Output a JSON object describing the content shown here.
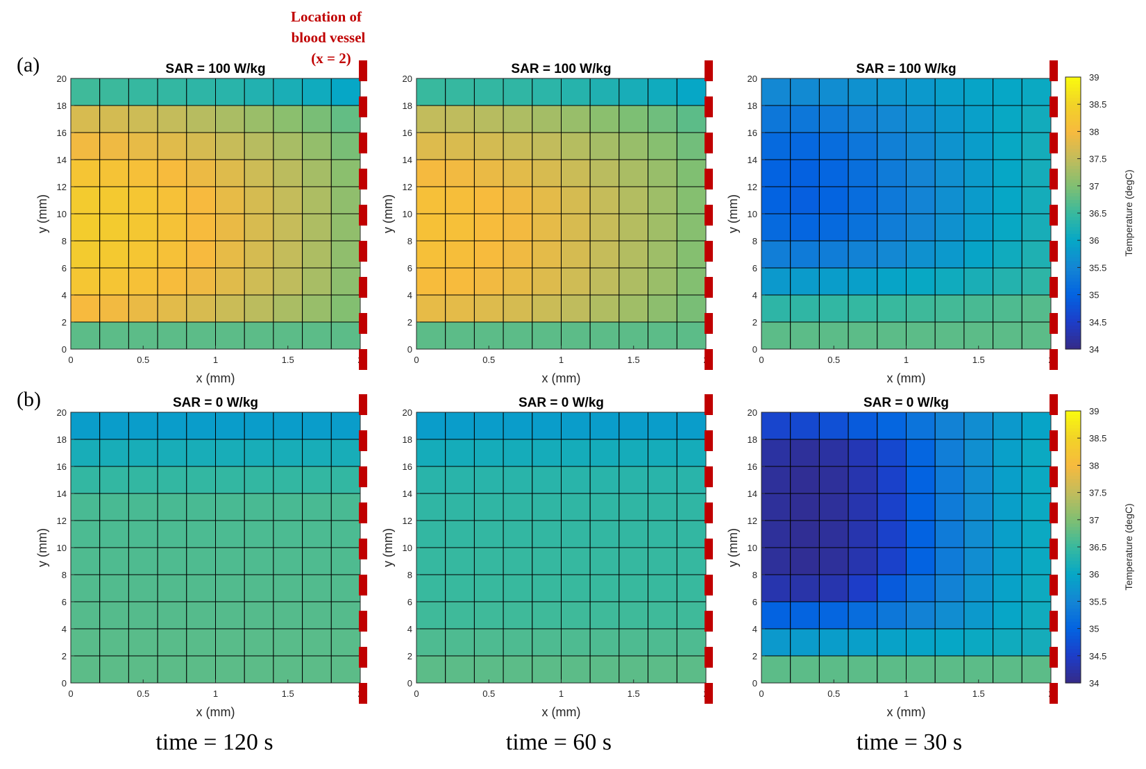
{
  "figure": {
    "row_labels": [
      "(a)",
      "(b)"
    ],
    "time_labels": [
      "time = 120 s",
      "time = 60 s",
      "time = 30 s"
    ],
    "annotation": {
      "lines": [
        "Location of",
        "blood vessel",
        "(x = 2)"
      ],
      "color": "#c00000"
    },
    "vessel_color": "#c00000"
  },
  "chart_data": {
    "type": "heatmap",
    "xlabel": "x (mm)",
    "ylabel": "y (mm)",
    "x_edges": [
      0,
      0.2,
      0.4,
      0.6,
      0.8,
      1.0,
      1.2,
      1.4,
      1.6,
      1.8,
      2.0
    ],
    "y_edges": [
      0,
      2,
      4,
      6,
      8,
      10,
      12,
      14,
      16,
      18,
      20
    ],
    "xlim": [
      0,
      2
    ],
    "ylim": [
      0,
      20
    ],
    "xticks": [
      0,
      0.5,
      1,
      1.5,
      2
    ],
    "xtick_labels": [
      "0",
      "0.5",
      "1",
      "1.5",
      "2"
    ],
    "yticks": [
      0,
      2,
      4,
      6,
      8,
      10,
      12,
      14,
      16,
      18,
      20
    ],
    "ytick_labels": [
      "0",
      "2",
      "4",
      "6",
      "8",
      "10",
      "12",
      "14",
      "16",
      "18",
      "20"
    ],
    "colorbar": {
      "label": "Temperature (degC)",
      "clim": [
        34,
        39
      ],
      "ticks": [
        34,
        34.5,
        35,
        35.5,
        36,
        36.5,
        37,
        37.5,
        38,
        38.5,
        39
      ],
      "tick_labels": [
        "34",
        "34.5",
        "35",
        "35.5",
        "36",
        "36.5",
        "37",
        "37.5",
        "38",
        "38.5",
        "39"
      ]
    },
    "panels": [
      {
        "id": "a-120",
        "title": "SAR = 100 W/kg",
        "row": 0,
        "col": 0,
        "colorbar": false,
        "values": [
          [
            36.75,
            36.75,
            36.75,
            36.75,
            36.75,
            36.75,
            36.75,
            36.75,
            36.75,
            36.75
          ],
          [
            38.0,
            37.95,
            37.88,
            37.8,
            37.7,
            37.58,
            37.45,
            37.32,
            37.18,
            37.02
          ],
          [
            38.25,
            38.22,
            38.15,
            38.05,
            37.92,
            37.78,
            37.62,
            37.48,
            37.3,
            37.1
          ],
          [
            38.35,
            38.32,
            38.25,
            38.14,
            38.0,
            37.85,
            37.68,
            37.52,
            37.34,
            37.12
          ],
          [
            38.38,
            38.35,
            38.28,
            38.17,
            38.03,
            37.88,
            37.7,
            37.54,
            37.35,
            37.13
          ],
          [
            38.35,
            38.32,
            38.25,
            38.14,
            38.0,
            37.85,
            37.68,
            37.52,
            37.34,
            37.12
          ],
          [
            38.22,
            38.18,
            38.12,
            38.02,
            37.9,
            37.76,
            37.6,
            37.45,
            37.28,
            37.08
          ],
          [
            37.95,
            37.92,
            37.85,
            37.78,
            37.68,
            37.55,
            37.42,
            37.3,
            37.15,
            36.95
          ],
          [
            37.7,
            37.66,
            37.6,
            37.52,
            37.42,
            37.32,
            37.2,
            37.08,
            36.95,
            36.8
          ],
          [
            36.55,
            36.52,
            36.48,
            36.45,
            36.4,
            36.35,
            36.28,
            36.2,
            36.1,
            36.0
          ]
        ]
      },
      {
        "id": "a-60",
        "title": "SAR = 100 W/kg",
        "row": 0,
        "col": 1,
        "colorbar": false,
        "values": [
          [
            36.75,
            36.75,
            36.75,
            36.75,
            36.75,
            36.75,
            36.75,
            36.75,
            36.75,
            36.75
          ],
          [
            37.85,
            37.82,
            37.75,
            37.68,
            37.58,
            37.48,
            37.36,
            37.24,
            37.1,
            36.95
          ],
          [
            38.05,
            38.02,
            37.95,
            37.86,
            37.75,
            37.62,
            37.48,
            37.35,
            37.2,
            37.02
          ],
          [
            38.12,
            38.09,
            38.02,
            37.93,
            37.82,
            37.68,
            37.53,
            37.39,
            37.23,
            37.04
          ],
          [
            38.15,
            38.12,
            38.05,
            37.96,
            37.84,
            37.7,
            37.55,
            37.4,
            37.24,
            37.05
          ],
          [
            38.12,
            38.09,
            38.02,
            37.93,
            37.82,
            37.68,
            37.53,
            37.39,
            37.23,
            37.04
          ],
          [
            37.98,
            37.95,
            37.88,
            37.8,
            37.7,
            37.58,
            37.44,
            37.32,
            37.18,
            37.0
          ],
          [
            37.75,
            37.72,
            37.66,
            37.58,
            37.5,
            37.4,
            37.28,
            37.18,
            37.05,
            36.9
          ],
          [
            37.5,
            37.48,
            37.42,
            37.35,
            37.27,
            37.18,
            37.08,
            36.98,
            36.88,
            36.75
          ],
          [
            36.5,
            36.48,
            36.45,
            36.42,
            36.38,
            36.32,
            36.26,
            36.18,
            36.1,
            36.0
          ]
        ]
      },
      {
        "id": "a-30",
        "title": "SAR = 100 W/kg",
        "row": 0,
        "col": 2,
        "colorbar": true,
        "values": [
          [
            36.75,
            36.75,
            36.75,
            36.75,
            36.75,
            36.75,
            36.75,
            36.75,
            36.75,
            36.75
          ],
          [
            36.4,
            36.42,
            36.44,
            36.46,
            36.5,
            36.54,
            36.58,
            36.62,
            36.66,
            36.7
          ],
          [
            35.8,
            35.82,
            35.85,
            35.88,
            35.95,
            36.02,
            36.1,
            36.2,
            36.3,
            36.4
          ],
          [
            35.4,
            35.35,
            35.38,
            35.45,
            35.55,
            35.68,
            35.8,
            35.95,
            36.1,
            36.25
          ],
          [
            35.1,
            35.05,
            35.1,
            35.22,
            35.38,
            35.52,
            35.68,
            35.85,
            36.02,
            36.18
          ],
          [
            35.0,
            34.95,
            35.02,
            35.15,
            35.32,
            35.48,
            35.65,
            35.82,
            36.0,
            36.15
          ],
          [
            35.0,
            34.98,
            35.05,
            35.18,
            35.35,
            35.5,
            35.66,
            35.83,
            36.0,
            36.15
          ],
          [
            35.1,
            35.08,
            35.15,
            35.28,
            35.42,
            35.56,
            35.7,
            35.86,
            36.02,
            36.15
          ],
          [
            35.3,
            35.3,
            35.35,
            35.45,
            35.55,
            35.66,
            35.78,
            35.9,
            36.02,
            36.12
          ],
          [
            35.55,
            35.58,
            35.62,
            35.68,
            35.74,
            35.8,
            35.88,
            35.95,
            36.0,
            36.05
          ]
        ]
      },
      {
        "id": "b-120",
        "title": "SAR = 0 W/kg",
        "row": 1,
        "col": 0,
        "colorbar": false,
        "values": [
          [
            36.75,
            36.75,
            36.75,
            36.75,
            36.75,
            36.75,
            36.75,
            36.75,
            36.75,
            36.75
          ],
          [
            36.73,
            36.73,
            36.73,
            36.73,
            36.73,
            36.73,
            36.73,
            36.73,
            36.73,
            36.73
          ],
          [
            36.7,
            36.7,
            36.7,
            36.7,
            36.7,
            36.7,
            36.7,
            36.7,
            36.7,
            36.7
          ],
          [
            36.68,
            36.68,
            36.68,
            36.68,
            36.68,
            36.68,
            36.68,
            36.68,
            36.68,
            36.68
          ],
          [
            36.66,
            36.66,
            36.66,
            36.66,
            36.66,
            36.66,
            36.66,
            36.66,
            36.66,
            36.66
          ],
          [
            36.64,
            36.64,
            36.64,
            36.64,
            36.64,
            36.64,
            36.64,
            36.64,
            36.64,
            36.64
          ],
          [
            36.62,
            36.62,
            36.62,
            36.62,
            36.62,
            36.62,
            36.62,
            36.62,
            36.62,
            36.62
          ],
          [
            36.45,
            36.45,
            36.45,
            36.45,
            36.45,
            36.45,
            36.45,
            36.45,
            36.45,
            36.45
          ],
          [
            36.18,
            36.18,
            36.18,
            36.18,
            36.18,
            36.18,
            36.18,
            36.18,
            36.18,
            36.18
          ],
          [
            35.85,
            35.85,
            35.85,
            35.85,
            35.85,
            35.85,
            35.85,
            35.85,
            35.85,
            35.85
          ]
        ]
      },
      {
        "id": "b-60",
        "title": "SAR = 0 W/kg",
        "row": 1,
        "col": 1,
        "colorbar": false,
        "values": [
          [
            36.75,
            36.75,
            36.75,
            36.75,
            36.75,
            36.75,
            36.75,
            36.75,
            36.75,
            36.75
          ],
          [
            36.65,
            36.65,
            36.65,
            36.65,
            36.65,
            36.65,
            36.65,
            36.65,
            36.65,
            36.65
          ],
          [
            36.55,
            36.55,
            36.55,
            36.55,
            36.55,
            36.55,
            36.55,
            36.55,
            36.55,
            36.55
          ],
          [
            36.5,
            36.5,
            36.5,
            36.5,
            36.5,
            36.5,
            36.5,
            36.5,
            36.5,
            36.5
          ],
          [
            36.48,
            36.48,
            36.48,
            36.48,
            36.48,
            36.48,
            36.48,
            36.48,
            36.48,
            36.48
          ],
          [
            36.45,
            36.45,
            36.45,
            36.45,
            36.45,
            36.45,
            36.45,
            36.45,
            36.45,
            36.45
          ],
          [
            36.42,
            36.42,
            36.42,
            36.42,
            36.42,
            36.42,
            36.42,
            36.42,
            36.42,
            36.42
          ],
          [
            36.35,
            36.35,
            36.35,
            36.35,
            36.35,
            36.35,
            36.35,
            36.35,
            36.35,
            36.35
          ],
          [
            36.15,
            36.15,
            36.15,
            36.15,
            36.15,
            36.15,
            36.15,
            36.15,
            36.15,
            36.15
          ],
          [
            35.85,
            35.85,
            35.85,
            35.85,
            35.85,
            35.85,
            35.85,
            35.85,
            35.85,
            35.85
          ]
        ]
      },
      {
        "id": "b-30",
        "title": "SAR = 0 W/kg",
        "row": 1,
        "col": 2,
        "colorbar": true,
        "values": [
          [
            36.75,
            36.75,
            36.75,
            36.75,
            36.75,
            36.75,
            36.75,
            36.75,
            36.75,
            36.75
          ],
          [
            35.8,
            35.82,
            35.85,
            35.88,
            35.92,
            35.96,
            36.0,
            36.05,
            36.1,
            36.15
          ],
          [
            35.0,
            35.02,
            35.05,
            35.15,
            35.3,
            35.45,
            35.62,
            35.8,
            35.98,
            36.1
          ],
          [
            34.3,
            34.25,
            34.3,
            34.5,
            34.9,
            35.2,
            35.45,
            35.7,
            35.92,
            36.08
          ],
          [
            34.15,
            34.1,
            34.15,
            34.3,
            34.55,
            35.0,
            35.35,
            35.62,
            35.88,
            36.05
          ],
          [
            34.15,
            34.1,
            34.15,
            34.3,
            34.55,
            35.0,
            35.35,
            35.62,
            35.88,
            36.05
          ],
          [
            34.15,
            34.1,
            34.15,
            34.3,
            34.55,
            35.0,
            35.35,
            35.62,
            35.88,
            36.05
          ],
          [
            34.15,
            34.1,
            34.15,
            34.3,
            34.55,
            35.0,
            35.35,
            35.62,
            35.88,
            36.05
          ],
          [
            34.2,
            34.15,
            34.2,
            34.35,
            34.65,
            35.05,
            35.4,
            35.65,
            35.9,
            36.05
          ],
          [
            34.6,
            34.65,
            34.75,
            34.9,
            35.05,
            35.25,
            35.45,
            35.62,
            35.8,
            35.95
          ]
        ]
      }
    ]
  }
}
